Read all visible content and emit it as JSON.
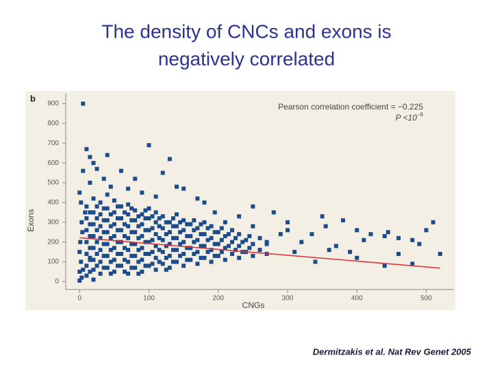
{
  "slide_title": [
    "The density of CNCs and exons is",
    "negatively correlated"
  ],
  "citation": "Dermitzakis et al. Nat Rev Genet 2005",
  "chart_data": {
    "type": "scatter",
    "panel_label": "b",
    "x_label": "CNGs",
    "y_label": "Exons",
    "annotation": "Pearson correlation coefficient = −0.225",
    "annotation_p": "P <10",
    "annotation_p_exponent": "−6",
    "color": "#1c4c8a",
    "xlim": [
      -20,
      540
    ],
    "ylim": [
      -40,
      950
    ],
    "xticks": [
      0,
      100,
      200,
      300,
      400,
      500
    ],
    "yticks": [
      0,
      100,
      200,
      300,
      400,
      500,
      600,
      700,
      800,
      900
    ],
    "trend_line": {
      "color": "#d8363c",
      "x": [
        0,
        520
      ],
      "y": [
        222,
        68
      ]
    },
    "x": [
      5,
      100,
      10,
      15,
      20,
      5,
      120,
      150,
      180,
      250,
      280,
      300,
      350,
      380,
      400,
      420,
      440,
      460,
      480,
      500,
      510,
      445,
      355,
      335,
      300,
      320,
      370,
      400,
      480,
      520,
      440,
      460,
      490,
      410,
      390,
      360,
      340,
      310,
      290,
      270,
      250,
      230,
      210,
      195,
      170,
      140,
      130,
      60,
      80,
      40,
      25,
      45,
      70,
      90,
      110,
      35,
      15,
      0,
      2,
      8,
      3,
      4,
      1,
      0,
      2,
      0,
      3,
      0,
      5,
      10,
      20,
      15,
      10,
      10,
      10,
      10,
      10,
      10,
      20,
      20,
      20,
      20,
      20,
      20,
      20,
      30,
      30,
      30,
      30,
      30,
      30,
      30,
      40,
      40,
      40,
      40,
      40,
      40,
      40,
      50,
      50,
      50,
      50,
      50,
      50,
      50,
      60,
      60,
      60,
      60,
      60,
      60,
      70,
      70,
      70,
      70,
      70,
      70,
      70,
      80,
      80,
      80,
      80,
      80,
      80,
      90,
      90,
      90,
      90,
      90,
      90,
      100,
      100,
      100,
      100,
      100,
      100,
      110,
      110,
      110,
      110,
      110,
      110,
      120,
      120,
      120,
      120,
      120,
      130,
      130,
      130,
      130,
      130,
      140,
      140,
      140,
      140,
      140,
      150,
      150,
      150,
      150,
      150,
      160,
      160,
      160,
      160,
      170,
      170,
      170,
      170,
      180,
      180,
      180,
      180,
      190,
      190,
      190,
      190,
      200,
      200,
      200,
      210,
      210,
      210,
      220,
      220,
      220,
      230,
      230,
      230,
      240,
      240,
      250,
      250,
      260,
      260,
      270,
      270,
      15,
      15,
      15,
      15,
      15,
      15,
      25,
      25,
      25,
      25,
      25,
      25,
      35,
      35,
      35,
      35,
      35,
      35,
      45,
      45,
      45,
      45,
      45,
      45,
      55,
      55,
      55,
      55,
      55,
      55,
      65,
      65,
      65,
      65,
      65,
      65,
      75,
      75,
      75,
      75,
      75,
      75,
      85,
      85,
      85,
      85,
      85,
      85,
      95,
      95,
      95,
      95,
      95,
      95,
      105,
      105,
      105,
      105,
      105,
      115,
      115,
      115,
      115,
      115,
      125,
      125,
      125,
      125,
      125,
      135,
      135,
      135,
      135,
      135,
      145,
      145,
      145,
      145,
      155,
      155,
      155,
      155,
      165,
      165,
      165,
      165,
      175,
      175,
      175,
      175,
      185,
      185,
      185,
      195,
      195,
      195,
      205,
      205,
      205,
      215,
      215,
      225,
      225,
      235,
      235,
      245,
      245
    ],
    "values": [
      900,
      690,
      670,
      630,
      600,
      560,
      550,
      470,
      400,
      380,
      350,
      300,
      330,
      310,
      260,
      240,
      230,
      220,
      210,
      260,
      300,
      250,
      280,
      240,
      260,
      200,
      180,
      120,
      90,
      140,
      80,
      140,
      190,
      210,
      150,
      160,
      100,
      150,
      240,
      190,
      280,
      330,
      300,
      350,
      420,
      480,
      620,
      560,
      520,
      640,
      570,
      480,
      470,
      450,
      430,
      520,
      500,
      450,
      400,
      350,
      300,
      250,
      200,
      150,
      100,
      50,
      20,
      5,
      60,
      30,
      10,
      120,
      80,
      140,
      200,
      260,
      320,
      380,
      60,
      110,
      170,
      230,
      290,
      350,
      420,
      40,
      100,
      160,
      220,
      280,
      340,
      400,
      70,
      130,
      190,
      250,
      310,
      370,
      440,
      50,
      110,
      170,
      230,
      290,
      350,
      410,
      80,
      140,
      200,
      260,
      320,
      380,
      40,
      100,
      160,
      220,
      280,
      340,
      390,
      70,
      130,
      190,
      250,
      310,
      360,
      50,
      110,
      170,
      230,
      290,
      340,
      80,
      140,
      200,
      260,
      320,
      370,
      60,
      120,
      180,
      240,
      300,
      350,
      90,
      150,
      210,
      270,
      330,
      70,
      130,
      190,
      250,
      300,
      100,
      160,
      220,
      280,
      340,
      80,
      140,
      200,
      260,
      310,
      110,
      170,
      230,
      290,
      90,
      150,
      210,
      270,
      120,
      180,
      240,
      300,
      100,
      160,
      220,
      280,
      130,
      190,
      250,
      110,
      170,
      230,
      140,
      200,
      260,
      120,
      180,
      240,
      150,
      210,
      130,
      190,
      160,
      220,
      140,
      200,
      50,
      110,
      170,
      230,
      290,
      350,
      80,
      140,
      200,
      260,
      320,
      380,
      70,
      130,
      190,
      250,
      310,
      370,
      40,
      100,
      160,
      220,
      280,
      340,
      80,
      140,
      200,
      260,
      320,
      380,
      50,
      110,
      170,
      230,
      290,
      350,
      70,
      130,
      190,
      250,
      310,
      370,
      40,
      100,
      160,
      220,
      280,
      330,
      80,
      140,
      200,
      260,
      320,
      360,
      90,
      150,
      210,
      270,
      330,
      100,
      160,
      220,
      280,
      320,
      60,
      120,
      180,
      240,
      300,
      100,
      160,
      220,
      280,
      320,
      130,
      190,
      250,
      300,
      110,
      170,
      230,
      290,
      140,
      200,
      260,
      310,
      120,
      180,
      240,
      290,
      150,
      210,
      270,
      130,
      190,
      250,
      150,
      210,
      270,
      180,
      240,
      160,
      220,
      150,
      200,
      170,
      230
    ]
  }
}
